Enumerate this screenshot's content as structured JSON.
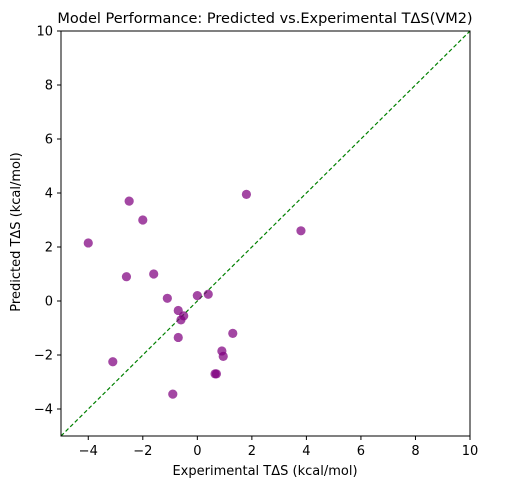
{
  "chart_data": {
    "type": "scatter",
    "title": "Model Performance: Predicted vs.Experimental TΔS(VM2)",
    "xlabel": "Experimental TΔS (kcal/mol)",
    "ylabel": "Predicted TΔS (kcal/mol)",
    "xlim": [
      -5,
      10
    ],
    "ylim": [
      -5,
      10
    ],
    "xticks": [
      -4,
      -2,
      0,
      2,
      4,
      6,
      8,
      10
    ],
    "yticks": [
      -4,
      -2,
      0,
      2,
      4,
      6,
      8,
      10
    ],
    "grid": false,
    "reference_line": {
      "x": [
        -5,
        10
      ],
      "y": [
        -5,
        10
      ],
      "style": "dashed"
    },
    "series": [
      {
        "x": [
          -4.0,
          -2.5,
          -2.0,
          -1.6,
          -2.6,
          -1.1,
          -3.1,
          -0.9,
          -0.7,
          -0.6,
          -0.5,
          -0.7,
          0.0,
          0.4,
          1.3,
          0.9,
          0.95,
          0.65,
          0.7,
          1.8,
          3.8
        ],
        "y": [
          2.15,
          3.7,
          3.0,
          1.0,
          0.9,
          0.1,
          -2.25,
          -3.45,
          -0.35,
          -0.7,
          -0.55,
          -1.35,
          0.2,
          0.25,
          -1.2,
          -1.85,
          -2.05,
          -2.7,
          -2.7,
          3.95,
          2.6
        ]
      }
    ]
  },
  "colors": {
    "points": "#800080",
    "reference_line": "#008000",
    "axes": "#000000"
  }
}
